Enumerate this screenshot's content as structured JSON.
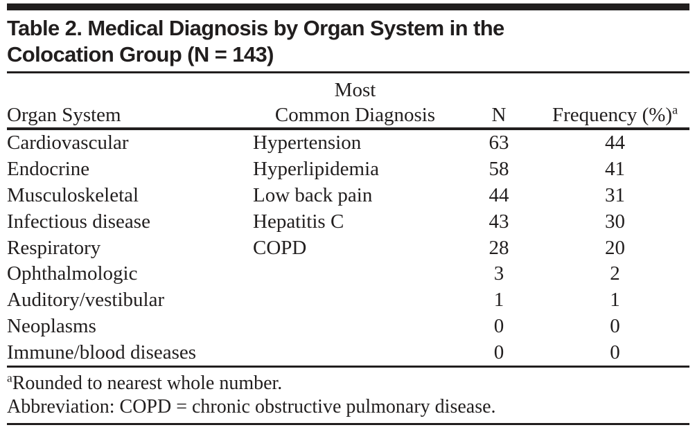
{
  "colors": {
    "background": "#ffffff",
    "text": "#211e1e",
    "rule": "#211e1e"
  },
  "table": {
    "title_lines": [
      "Table 2. Medical Diagnosis by Organ System in the",
      "Colocation Group (N = 143)"
    ],
    "header": {
      "organ_system": "Organ System",
      "diagnosis_line1": "Most",
      "diagnosis_line2": "Common Diagnosis",
      "n": "N",
      "frequency_base": "Frequency (%)",
      "frequency_sup": "a"
    },
    "rows": [
      {
        "organ_system": "Cardiovascular",
        "diagnosis": "Hypertension",
        "n": "63",
        "frequency": "44"
      },
      {
        "organ_system": "Endocrine",
        "diagnosis": "Hyperlipidemia",
        "n": "58",
        "frequency": "41"
      },
      {
        "organ_system": "Musculoskeletal",
        "diagnosis": "Low back pain",
        "n": "44",
        "frequency": "31"
      },
      {
        "organ_system": "Infectious disease",
        "diagnosis": "Hepatitis C",
        "n": "43",
        "frequency": "30"
      },
      {
        "organ_system": "Respiratory",
        "diagnosis": "COPD",
        "n": "28",
        "frequency": "20"
      },
      {
        "organ_system": "Ophthalmologic",
        "diagnosis": "",
        "n": "3",
        "frequency": "2"
      },
      {
        "organ_system": "Auditory/vestibular",
        "diagnosis": "",
        "n": "1",
        "frequency": "1"
      },
      {
        "organ_system": "Neoplasms",
        "diagnosis": "",
        "n": "0",
        "frequency": "0"
      },
      {
        "organ_system": "Immune/blood diseases",
        "diagnosis": "",
        "n": "0",
        "frequency": "0"
      }
    ],
    "footnotes": {
      "footnote_a_sup": "a",
      "footnote_a_text": "Rounded to nearest whole number.",
      "abbreviation": "Abbreviation: COPD = chronic obstructive pulmonary disease."
    }
  },
  "chart_data": {
    "type": "table",
    "title": "Table 2. Medical Diagnosis by Organ System in the Colocation Group (N = 143)",
    "columns": [
      "Organ System",
      "Most Common Diagnosis",
      "N",
      "Frequency (%)"
    ],
    "rows": [
      [
        "Cardiovascular",
        "Hypertension",
        63,
        44
      ],
      [
        "Endocrine",
        "Hyperlipidemia",
        58,
        41
      ],
      [
        "Musculoskeletal",
        "Low back pain",
        44,
        31
      ],
      [
        "Infectious disease",
        "Hepatitis C",
        43,
        30
      ],
      [
        "Respiratory",
        "COPD",
        28,
        20
      ],
      [
        "Ophthalmologic",
        "",
        3,
        2
      ],
      [
        "Auditory/vestibular",
        "",
        1,
        1
      ],
      [
        "Neoplasms",
        "",
        0,
        0
      ],
      [
        "Immune/blood diseases",
        "",
        0,
        0
      ]
    ]
  }
}
